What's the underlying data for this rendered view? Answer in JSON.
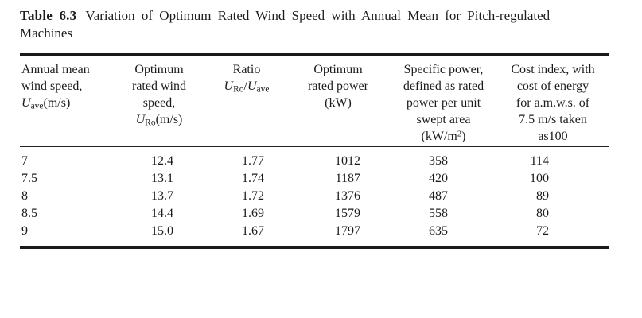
{
  "title": {
    "label": "Table 6.3",
    "text_rich": [
      {
        "t": "Variation of Optimum Rated Wind Speed with Annual Mean for Pitch-regulated"
      },
      {
        "br": true
      },
      {
        "t": "Machines"
      }
    ]
  },
  "table": {
    "columns": [
      {
        "name": "annual-mean-wind-speed",
        "header": [
          {
            "t": "Annual mean"
          },
          {
            "br": true
          },
          {
            "t": "wind speed,"
          },
          {
            "br": true
          },
          {
            "t": "U",
            "i": true
          },
          {
            "t": "ave",
            "sub": true
          },
          {
            "t": "(m/s)"
          }
        ]
      },
      {
        "name": "optimum-rated-wind-speed",
        "header": [
          {
            "t": "Optimum"
          },
          {
            "br": true
          },
          {
            "t": "rated wind"
          },
          {
            "br": true
          },
          {
            "t": "speed,"
          },
          {
            "br": true
          },
          {
            "t": "U",
            "i": true
          },
          {
            "t": "Ro",
            "sub": true
          },
          {
            "t": "(m/s)"
          }
        ]
      },
      {
        "name": "ratio",
        "header": [
          {
            "t": "Ratio"
          },
          {
            "br": true
          },
          {
            "t": "U",
            "i": true
          },
          {
            "t": "Ro",
            "sub": true
          },
          {
            "t": "/"
          },
          {
            "t": "U",
            "i": true
          },
          {
            "t": "ave",
            "sub": true
          }
        ]
      },
      {
        "name": "optimum-rated-power",
        "header": [
          {
            "t": "Optimum"
          },
          {
            "br": true
          },
          {
            "t": "rated power"
          },
          {
            "br": true
          },
          {
            "t": "(kW)"
          }
        ]
      },
      {
        "name": "specific-power",
        "header": [
          {
            "t": "Specific power,"
          },
          {
            "br": true
          },
          {
            "t": "defined as rated"
          },
          {
            "br": true
          },
          {
            "t": "power per unit"
          },
          {
            "br": true
          },
          {
            "t": "swept area"
          },
          {
            "br": true
          },
          {
            "t": "(kW/m"
          },
          {
            "t": "2",
            "sup": true
          },
          {
            "t": ")"
          }
        ]
      },
      {
        "name": "cost-index",
        "header": [
          {
            "t": "Cost index, with"
          },
          {
            "br": true
          },
          {
            "t": "cost of energy"
          },
          {
            "br": true
          },
          {
            "t": "for a.m.w.s. of"
          },
          {
            "br": true
          },
          {
            "t": "7.5 m/s taken"
          },
          {
            "br": true
          },
          {
            "t": "as100"
          }
        ]
      }
    ],
    "rows": [
      [
        "7",
        "12.4",
        "1.77",
        "1012",
        "358",
        "114"
      ],
      [
        "7.5",
        "13.1",
        "1.74",
        "1187",
        "420",
        "100"
      ],
      [
        "8",
        "13.7",
        "1.72",
        "1376",
        "487",
        "89"
      ],
      [
        "8.5",
        "14.4",
        "1.69",
        "1579",
        "558",
        "80"
      ],
      [
        "9",
        "15.0",
        "1.67",
        "1797",
        "635",
        "72"
      ]
    ]
  },
  "colors": {
    "background": "#ffffff",
    "text": "#1c1c1c",
    "rule": "#1a1a1a"
  }
}
